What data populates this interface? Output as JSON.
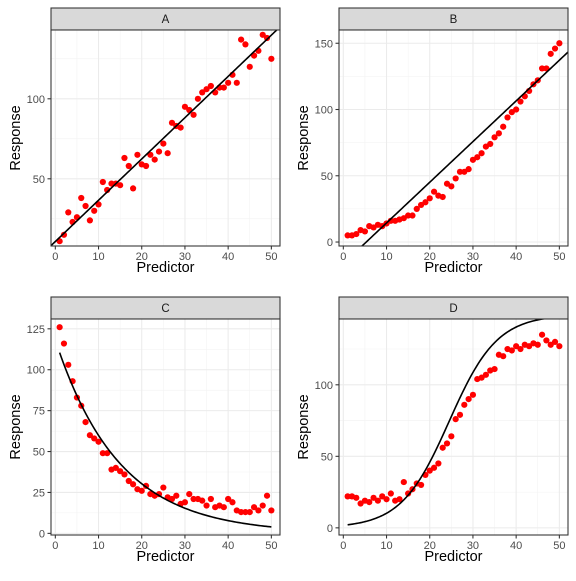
{
  "chart_data": [
    {
      "type": "scatter",
      "facet_label": "A",
      "xlabel": "Predictor",
      "ylabel": "Response",
      "xlim": [
        -1,
        52
      ],
      "ylim": [
        8,
        143
      ],
      "x_ticks": [
        0,
        10,
        20,
        30,
        40,
        50
      ],
      "y_ticks": [
        50,
        100
      ],
      "grid": true,
      "point_color": "#ff0000",
      "line_color": "#000000",
      "line_type": "linear",
      "line_params": {
        "intercept": 10.8,
        "slope": 2.58
      },
      "x": [
        1,
        2,
        3,
        4,
        5,
        6,
        7,
        8,
        9,
        10,
        11,
        12,
        13,
        14,
        15,
        16,
        17,
        18,
        19,
        20,
        21,
        22,
        23,
        24,
        25,
        26,
        27,
        28,
        29,
        30,
        31,
        32,
        33,
        34,
        35,
        36,
        37,
        38,
        39,
        40,
        41,
        42,
        43,
        44,
        45,
        46,
        47,
        48,
        49,
        50
      ],
      "y": [
        11,
        15,
        29,
        23,
        26,
        38,
        33,
        24,
        30,
        34,
        48,
        43,
        47,
        47,
        46,
        63,
        58,
        44,
        65,
        59,
        58,
        65,
        62,
        67,
        72,
        66,
        85,
        83,
        82,
        95,
        93,
        90,
        100,
        104,
        106,
        108,
        104,
        107,
        107,
        110,
        115,
        110,
        137,
        134,
        120,
        127,
        130,
        140,
        138,
        125
      ]
    },
    {
      "type": "scatter",
      "facet_label": "B",
      "xlabel": "Predictor",
      "ylabel": "Response",
      "xlim": [
        -1,
        52
      ],
      "ylim": [
        -3,
        160
      ],
      "x_ticks": [
        0,
        10,
        20,
        30,
        40,
        50
      ],
      "y_ticks": [
        0,
        50,
        100,
        150
      ],
      "grid": true,
      "point_color": "#ff0000",
      "line_color": "#000000",
      "line_type": "linear",
      "line_params": {
        "intercept": -16.3,
        "slope": 3.07
      },
      "x": [
        1,
        2,
        3,
        4,
        5,
        6,
        7,
        8,
        9,
        10,
        11,
        12,
        13,
        14,
        15,
        16,
        17,
        18,
        19,
        20,
        21,
        22,
        23,
        24,
        25,
        26,
        27,
        28,
        29,
        30,
        31,
        32,
        33,
        34,
        35,
        36,
        37,
        38,
        39,
        40,
        41,
        42,
        43,
        44,
        45,
        46,
        47,
        48,
        49,
        50
      ],
      "y": [
        5,
        5,
        6,
        9,
        8,
        12,
        11,
        13,
        12,
        14,
        16,
        16,
        17,
        18,
        20,
        20,
        25,
        28,
        30,
        33,
        38,
        35,
        34,
        44,
        42,
        48,
        53,
        53,
        55,
        62,
        64,
        67,
        72,
        74,
        79,
        82,
        87,
        94,
        98,
        100,
        106,
        110,
        114,
        119,
        122,
        131,
        131,
        142,
        146,
        150
      ]
    },
    {
      "type": "scatter",
      "facet_label": "C",
      "xlabel": "Predictor",
      "ylabel": "Response",
      "xlim": [
        -1,
        52
      ],
      "ylim": [
        -1,
        131
      ],
      "x_ticks": [
        0,
        10,
        20,
        30,
        40,
        50
      ],
      "y_ticks": [
        0,
        25,
        50,
        75,
        100,
        125
      ],
      "grid": true,
      "point_color": "#ff0000",
      "line_color": "#000000",
      "line_type": "exponential",
      "line_params": {
        "a": 118.2,
        "k": -0.068
      },
      "x": [
        1,
        2,
        3,
        4,
        5,
        6,
        7,
        8,
        9,
        10,
        11,
        12,
        13,
        14,
        15,
        16,
        17,
        18,
        19,
        20,
        21,
        22,
        23,
        24,
        25,
        26,
        27,
        28,
        29,
        30,
        31,
        32,
        33,
        34,
        35,
        36,
        37,
        38,
        39,
        40,
        41,
        42,
        43,
        44,
        45,
        46,
        47,
        48,
        49,
        50
      ],
      "y": [
        126,
        116,
        103,
        93,
        83,
        78,
        68,
        60,
        58,
        56,
        49,
        49,
        39,
        40,
        38,
        36,
        32,
        30,
        27,
        26,
        29,
        24,
        23,
        24,
        28,
        22,
        21,
        23,
        18,
        19,
        24,
        21,
        21,
        20,
        17,
        21,
        16,
        17,
        16,
        21,
        19,
        14,
        13,
        13,
        13,
        16,
        14,
        17,
        23,
        14
      ]
    },
    {
      "type": "scatter",
      "facet_label": "D",
      "xlabel": "Predictor",
      "ylabel": "Response",
      "xlim": [
        -1,
        52
      ],
      "ylim": [
        -5,
        146
      ],
      "x_ticks": [
        0,
        10,
        20,
        30,
        40,
        50
      ],
      "y_ticks": [
        0,
        50,
        100
      ],
      "grid": true,
      "point_color": "#ff0000",
      "line_color": "#000000",
      "line_type": "logistic",
      "line_params": {
        "L": 149,
        "x0": 24.5,
        "k": 0.18
      },
      "x": [
        1,
        2,
        3,
        4,
        5,
        6,
        7,
        8,
        9,
        10,
        11,
        12,
        13,
        14,
        15,
        16,
        17,
        18,
        19,
        20,
        21,
        22,
        23,
        24,
        25,
        26,
        27,
        28,
        29,
        30,
        31,
        32,
        33,
        34,
        35,
        36,
        37,
        38,
        39,
        40,
        41,
        42,
        43,
        44,
        45,
        46,
        47,
        48,
        49,
        50
      ],
      "y": [
        22,
        22,
        21,
        17,
        19,
        18,
        21,
        19,
        22,
        20,
        24,
        19,
        20,
        32,
        24,
        27,
        31,
        30,
        37,
        40,
        42,
        45,
        56,
        59,
        64,
        76,
        79,
        86,
        90,
        93,
        104,
        105,
        107,
        110,
        111,
        121,
        120,
        125,
        124,
        127,
        125,
        128,
        127,
        129,
        128,
        135,
        131,
        128,
        130,
        127
      ]
    }
  ]
}
